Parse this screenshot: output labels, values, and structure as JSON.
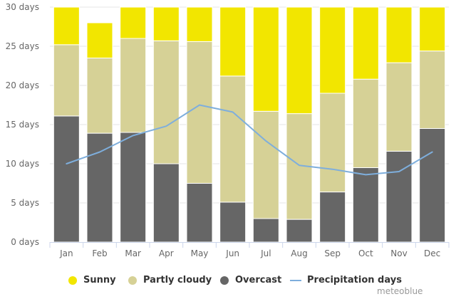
{
  "chart_data": {
    "type": "bar",
    "stacked": true,
    "title": "",
    "xlabel": "",
    "ylabel": "",
    "categories": [
      "Jan",
      "Feb",
      "Mar",
      "Apr",
      "May",
      "Jun",
      "Jul",
      "Aug",
      "Sep",
      "Oct",
      "Nov",
      "Dec"
    ],
    "ylim": [
      0,
      30
    ],
    "yticks": [
      0,
      5,
      10,
      15,
      20,
      25,
      30
    ],
    "ytick_suffix": " days",
    "grid": true,
    "series": [
      {
        "name": "Overcast",
        "type": "bar",
        "color": "#666666",
        "values": [
          16.1,
          13.9,
          14.0,
          10.0,
          7.5,
          5.1,
          3.0,
          2.9,
          6.4,
          9.5,
          11.6,
          14.5
        ]
      },
      {
        "name": "Partly cloudy",
        "type": "bar",
        "color": "#d6d196",
        "values": [
          9.1,
          9.6,
          12.0,
          15.7,
          18.1,
          16.1,
          13.7,
          13.5,
          12.6,
          11.3,
          11.3,
          9.9
        ]
      },
      {
        "name": "Sunny",
        "type": "bar",
        "color": "#f2e600",
        "values": [
          5.8,
          4.5,
          5.0,
          4.3,
          5.4,
          8.8,
          14.3,
          14.6,
          11.0,
          10.2,
          7.1,
          6.6
        ]
      },
      {
        "name": "Precipitation days",
        "type": "line",
        "color": "#7eaedc",
        "values": [
          10.0,
          11.5,
          13.6,
          14.8,
          17.5,
          16.6,
          12.9,
          9.8,
          9.3,
          8.6,
          9.0,
          11.5
        ]
      }
    ],
    "legend": {
      "position": "bottom",
      "items": [
        {
          "label": "Sunny",
          "symbol": "dot",
          "color": "#f2e600"
        },
        {
          "label": "Partly cloudy",
          "symbol": "dot",
          "color": "#d6d196"
        },
        {
          "label": "Overcast",
          "symbol": "dot",
          "color": "#666666"
        },
        {
          "label": "Precipitation days",
          "symbol": "line",
          "color": "#7eaedc"
        }
      ]
    },
    "credit": "meteoblue"
  }
}
